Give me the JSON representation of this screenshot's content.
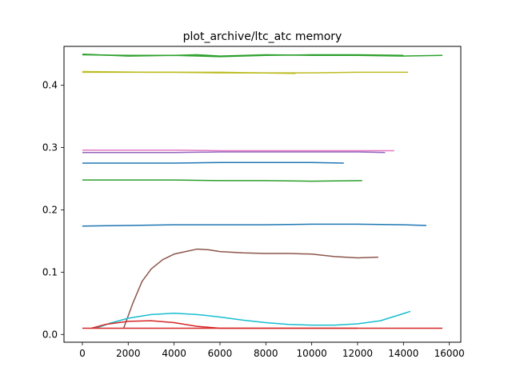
{
  "chart_data": {
    "type": "line",
    "title": "plot_archive/ltc_atc memory",
    "xlabel": "",
    "ylabel": "",
    "xlim": [
      -800,
      16500
    ],
    "ylim": [
      -0.0125,
      0.4625
    ],
    "xticks": [
      0,
      2000,
      4000,
      6000,
      8000,
      10000,
      12000,
      14000,
      16000
    ],
    "xtick_labels": [
      "0",
      "2000",
      "4000",
      "6000",
      "8000",
      "10000",
      "12000",
      "14000",
      "16000"
    ],
    "yticks": [
      0.0,
      0.1,
      0.2,
      0.3,
      0.4
    ],
    "ytick_labels": [
      "0.0",
      "0.1",
      "0.2",
      "0.3",
      "0.4"
    ],
    "grid": false,
    "legend": "none",
    "series": [
      {
        "color": "#2ca02c",
        "x": [
          0,
          2000,
          4000,
          5000,
          6000,
          8000,
          10000,
          12000,
          14000,
          15700
        ],
        "y": [
          0.449,
          0.448,
          0.448,
          0.449,
          0.447,
          0.449,
          0.448,
          0.448,
          0.447,
          0.448
        ]
      },
      {
        "color": "#2ca02c",
        "x": [
          0,
          2000,
          4000,
          6000,
          8000,
          10000,
          12000,
          14000
        ],
        "y": [
          0.45,
          0.447,
          0.448,
          0.446,
          0.448,
          0.449,
          0.449,
          0.448
        ]
      },
      {
        "color": "#bcbd22",
        "x": [
          0,
          2000,
          4000,
          6000,
          8000,
          10000,
          12000,
          14200
        ],
        "y": [
          0.421,
          0.421,
          0.421,
          0.42,
          0.42,
          0.42,
          0.421,
          0.421
        ]
      },
      {
        "color": "#bcbd22",
        "x": [
          0,
          3000,
          6000,
          9300
        ],
        "y": [
          0.422,
          0.421,
          0.421,
          0.419
        ]
      },
      {
        "color": "#e377c2",
        "x": [
          0,
          2000,
          4000,
          6000,
          8000,
          10000,
          12000,
          13600
        ],
        "y": [
          0.296,
          0.296,
          0.296,
          0.295,
          0.295,
          0.295,
          0.295,
          0.295
        ]
      },
      {
        "color": "#9467bd",
        "x": [
          0,
          2000,
          4000,
          6000,
          8000,
          10000,
          12000,
          13200
        ],
        "y": [
          0.292,
          0.292,
          0.292,
          0.293,
          0.293,
          0.293,
          0.293,
          0.292
        ]
      },
      {
        "color": "#1f77b4",
        "x": [
          0,
          2000,
          4000,
          6000,
          8000,
          10000,
          11400
        ],
        "y": [
          0.275,
          0.275,
          0.275,
          0.276,
          0.276,
          0.276,
          0.275
        ]
      },
      {
        "color": "#2ca02c",
        "x": [
          0,
          2000,
          4000,
          6000,
          8000,
          10000,
          12200
        ],
        "y": [
          0.248,
          0.248,
          0.248,
          0.247,
          0.247,
          0.246,
          0.247
        ]
      },
      {
        "color": "#1f77b4",
        "x": [
          0,
          2000,
          4000,
          6000,
          8000,
          10000,
          12000,
          14000,
          15000
        ],
        "y": [
          0.174,
          0.175,
          0.176,
          0.176,
          0.176,
          0.177,
          0.177,
          0.176,
          0.175
        ]
      },
      {
        "color": "#8c564b",
        "x": [
          1800,
          2200,
          2600,
          3000,
          3500,
          4000,
          4500,
          5000,
          5500,
          6000,
          7000,
          8000,
          9000,
          10000,
          11000,
          12000,
          12900
        ],
        "y": [
          0.01,
          0.05,
          0.085,
          0.105,
          0.12,
          0.129,
          0.133,
          0.137,
          0.136,
          0.133,
          0.131,
          0.13,
          0.13,
          0.129,
          0.125,
          0.123,
          0.124
        ]
      },
      {
        "color": "#17becf",
        "x": [
          600,
          1200,
          2000,
          3000,
          4000,
          5000,
          6000,
          7000,
          8000,
          9000,
          10000,
          11000,
          12000,
          13000,
          14300
        ],
        "y": [
          0.01,
          0.018,
          0.026,
          0.032,
          0.034,
          0.032,
          0.028,
          0.023,
          0.019,
          0.016,
          0.015,
          0.015,
          0.017,
          0.022,
          0.037
        ]
      },
      {
        "color": "#d62728",
        "x": [
          400,
          1000,
          2000,
          3000,
          4000,
          5000,
          6000,
          8000,
          10000,
          12000
        ],
        "y": [
          0.01,
          0.016,
          0.021,
          0.022,
          0.019,
          0.013,
          0.01,
          0.01,
          0.01,
          0.01
        ]
      },
      {
        "color": "#d62728",
        "x": [
          0,
          2000,
          4000,
          6000,
          8000,
          10000,
          12000,
          14000,
          15700
        ],
        "y": [
          0.01,
          0.01,
          0.01,
          0.01,
          0.01,
          0.01,
          0.01,
          0.01,
          0.01
        ]
      }
    ]
  }
}
